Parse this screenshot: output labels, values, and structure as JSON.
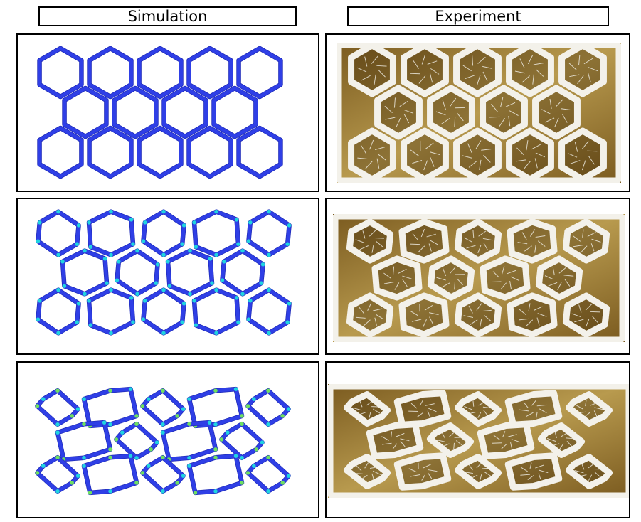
{
  "headers": {
    "simulation": "Simulation",
    "experiment": "Experiment"
  },
  "colors": {
    "sim_frame": "#2f3fe6",
    "sim_frame_dark": "#1f2bb8",
    "sim_hinge_cyan": "#20d4e0",
    "sim_hinge_green": "#6fe060",
    "photo_bg": "#7a5a1f",
    "photo_bg_light": "#b89a4e",
    "lattice_white": "#f3f1ea"
  },
  "rows": [
    {
      "stage": "undeformed",
      "deformation": 0.0
    },
    {
      "stage": "partially-compressed",
      "deformation": 0.35
    },
    {
      "stage": "fully-compressed",
      "deformation": 1.0
    }
  ]
}
